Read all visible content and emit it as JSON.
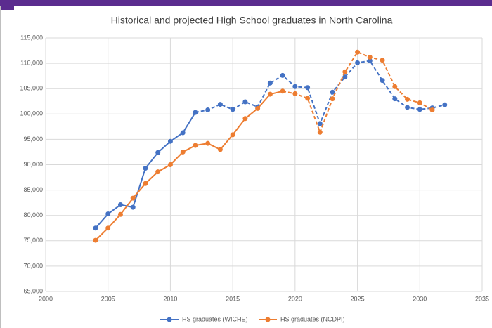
{
  "chart_data": {
    "type": "line",
    "title": "Historical and projected High School graduates in North Carolina",
    "x": [
      2004,
      2005,
      2006,
      2007,
      2008,
      2009,
      2010,
      2011,
      2012,
      2013,
      2014,
      2015,
      2016,
      2017,
      2018,
      2019,
      2020,
      2021,
      2022,
      2023,
      2024,
      2025,
      2026,
      2027,
      2028,
      2029,
      2030,
      2031,
      2032
    ],
    "series": [
      {
        "name": "HS graduates (WICHE)",
        "color": "#4472c4",
        "dashed_from": 2012,
        "values": [
          77500,
          80300,
          82100,
          81600,
          89300,
          92400,
          94600,
          96300,
          100300,
          100800,
          101900,
          100900,
          102400,
          101400,
          106100,
          107600,
          105400,
          105200,
          98100,
          104300,
          107300,
          110100,
          110500,
          106600,
          103000,
          101300,
          100900,
          101200,
          101800
        ]
      },
      {
        "name": "HS graduates (NCDPI)",
        "color": "#ed7d31",
        "dashed_from": 2019,
        "values": [
          75100,
          77500,
          80200,
          83400,
          86300,
          88600,
          90000,
          92500,
          93800,
          94200,
          93000,
          95900,
          99100,
          101100,
          103900,
          104500,
          104000,
          103100,
          96400,
          103000,
          108300,
          112200,
          111200,
          110600,
          105400,
          102900,
          102200,
          100800,
          null
        ]
      }
    ],
    "xlim": [
      2000,
      2035
    ],
    "xticks": [
      2000,
      2005,
      2010,
      2015,
      2020,
      2025,
      2030,
      2035
    ],
    "ylim": [
      65000,
      115000
    ],
    "yticks": [
      {
        "value": 65000,
        "label": "65,000"
      },
      {
        "value": 70000,
        "label": "70,000"
      },
      {
        "value": 75000,
        "label": "75,000"
      },
      {
        "value": 80000,
        "label": "80,000"
      },
      {
        "value": 85000,
        "label": "85,000"
      },
      {
        "value": 90000,
        "label": "90,000"
      },
      {
        "value": 95000,
        "label": "95,000"
      },
      {
        "value": 100000,
        "label": "100,000"
      },
      {
        "value": 105000,
        "label": "105,000"
      },
      {
        "value": 110000,
        "label": "110,000"
      },
      {
        "value": 115000,
        "label": "115,000"
      }
    ],
    "grid": true,
    "legend": "bottom"
  }
}
